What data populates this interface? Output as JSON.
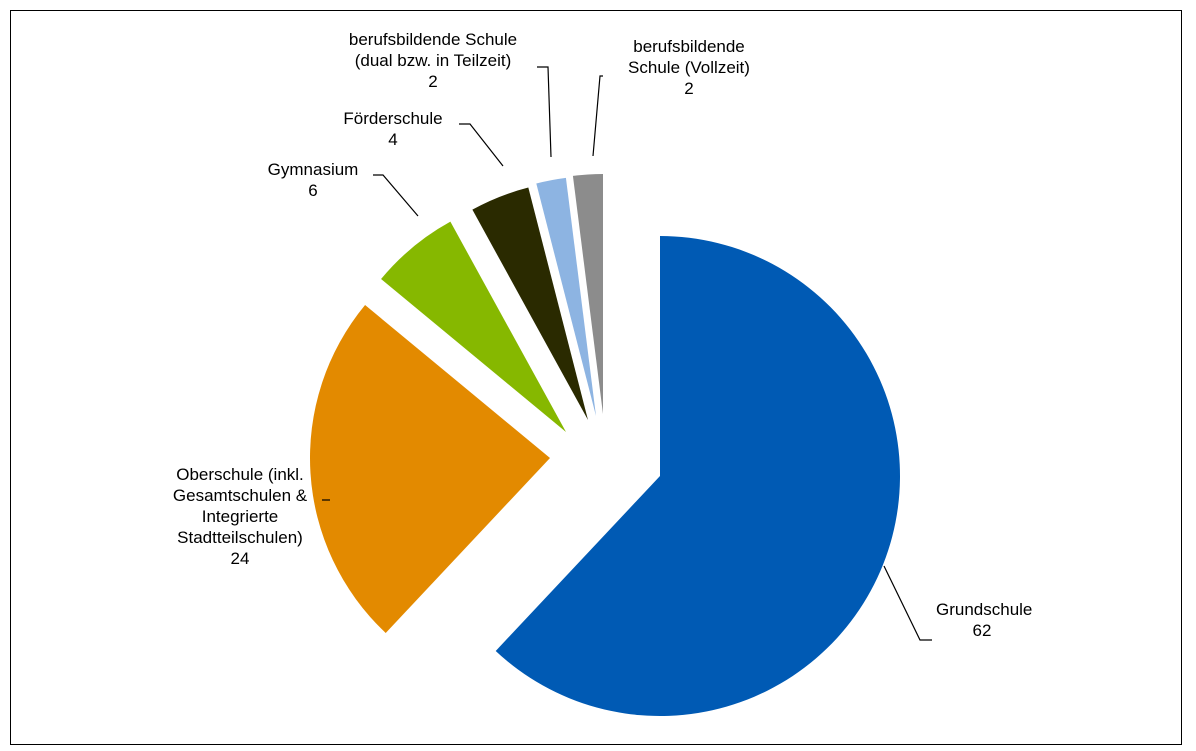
{
  "chart_data": {
    "type": "pie",
    "title": "",
    "exploded": true,
    "slices": [
      {
        "name": "Grundschule",
        "label_lines": [
          "Grundschule"
        ],
        "value": 62,
        "value_label": "62",
        "color": "#005AB4"
      },
      {
        "name": "Oberschule (inkl. Gesamtschulen & Integrierte Stadtteilschulen)",
        "label_lines": [
          "Oberschule (inkl.",
          "Gesamtschulen &",
          "Integrierte",
          "Stadtteilschulen)"
        ],
        "value": 24,
        "value_label": "24",
        "color": "#E38A00"
      },
      {
        "name": "Gymnasium",
        "label_lines": [
          "Gymnasium"
        ],
        "value": 6,
        "value_label": "6",
        "color": "#86B800"
      },
      {
        "name": "Förderschule",
        "label_lines": [
          "Förderschule"
        ],
        "value": 4,
        "value_label": "4",
        "color": "#2A2A00"
      },
      {
        "name": "berufsbildende Schule (dual bzw. in Teilzeit)",
        "label_lines": [
          "berufsbildende Schule",
          "(dual bzw. in Teilzeit)"
        ],
        "value": 2,
        "value_label": "2",
        "color": "#8DB4E2"
      },
      {
        "name": "berufsbildende Schule (Vollzeit)",
        "label_lines": [
          "berufsbildende",
          "Schule (Vollzeit)"
        ],
        "value": 2,
        "value_label": "2",
        "color": "#8C8C8C"
      }
    ]
  }
}
